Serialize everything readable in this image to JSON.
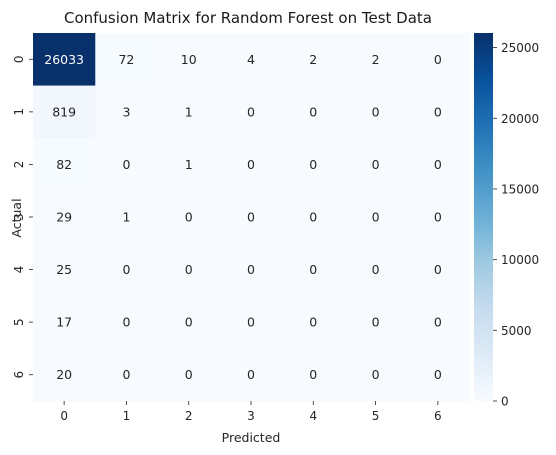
{
  "chart_data": {
    "type": "heatmap",
    "title": "Confusion Matrix for Random Forest on Test Data",
    "xlabel": "Predicted",
    "ylabel": "Actual",
    "x_categories": [
      "0",
      "1",
      "2",
      "3",
      "4",
      "5",
      "6"
    ],
    "y_categories": [
      "0",
      "1",
      "2",
      "3",
      "4",
      "5",
      "6"
    ],
    "values": [
      [
        26033,
        72,
        10,
        4,
        2,
        2,
        0
      ],
      [
        819,
        3,
        1,
        0,
        0,
        0,
        0
      ],
      [
        82,
        0,
        1,
        0,
        0,
        0,
        0
      ],
      [
        29,
        1,
        0,
        0,
        0,
        0,
        0
      ],
      [
        25,
        0,
        0,
        0,
        0,
        0,
        0
      ],
      [
        17,
        0,
        0,
        0,
        0,
        0,
        0
      ],
      [
        20,
        0,
        0,
        0,
        0,
        0,
        0
      ]
    ],
    "colormap": "Blues",
    "colorbar": {
      "range": [
        0,
        26033
      ],
      "ticks": [
        "0",
        "5000",
        "10000",
        "15000",
        "20000",
        "25000"
      ],
      "tick_values": [
        0,
        5000,
        10000,
        15000,
        20000,
        25000
      ]
    },
    "colors": {
      "low": "#f7fbff",
      "high": "#08306b",
      "text_dark": "#262626",
      "text_light": "#ffffff"
    }
  }
}
